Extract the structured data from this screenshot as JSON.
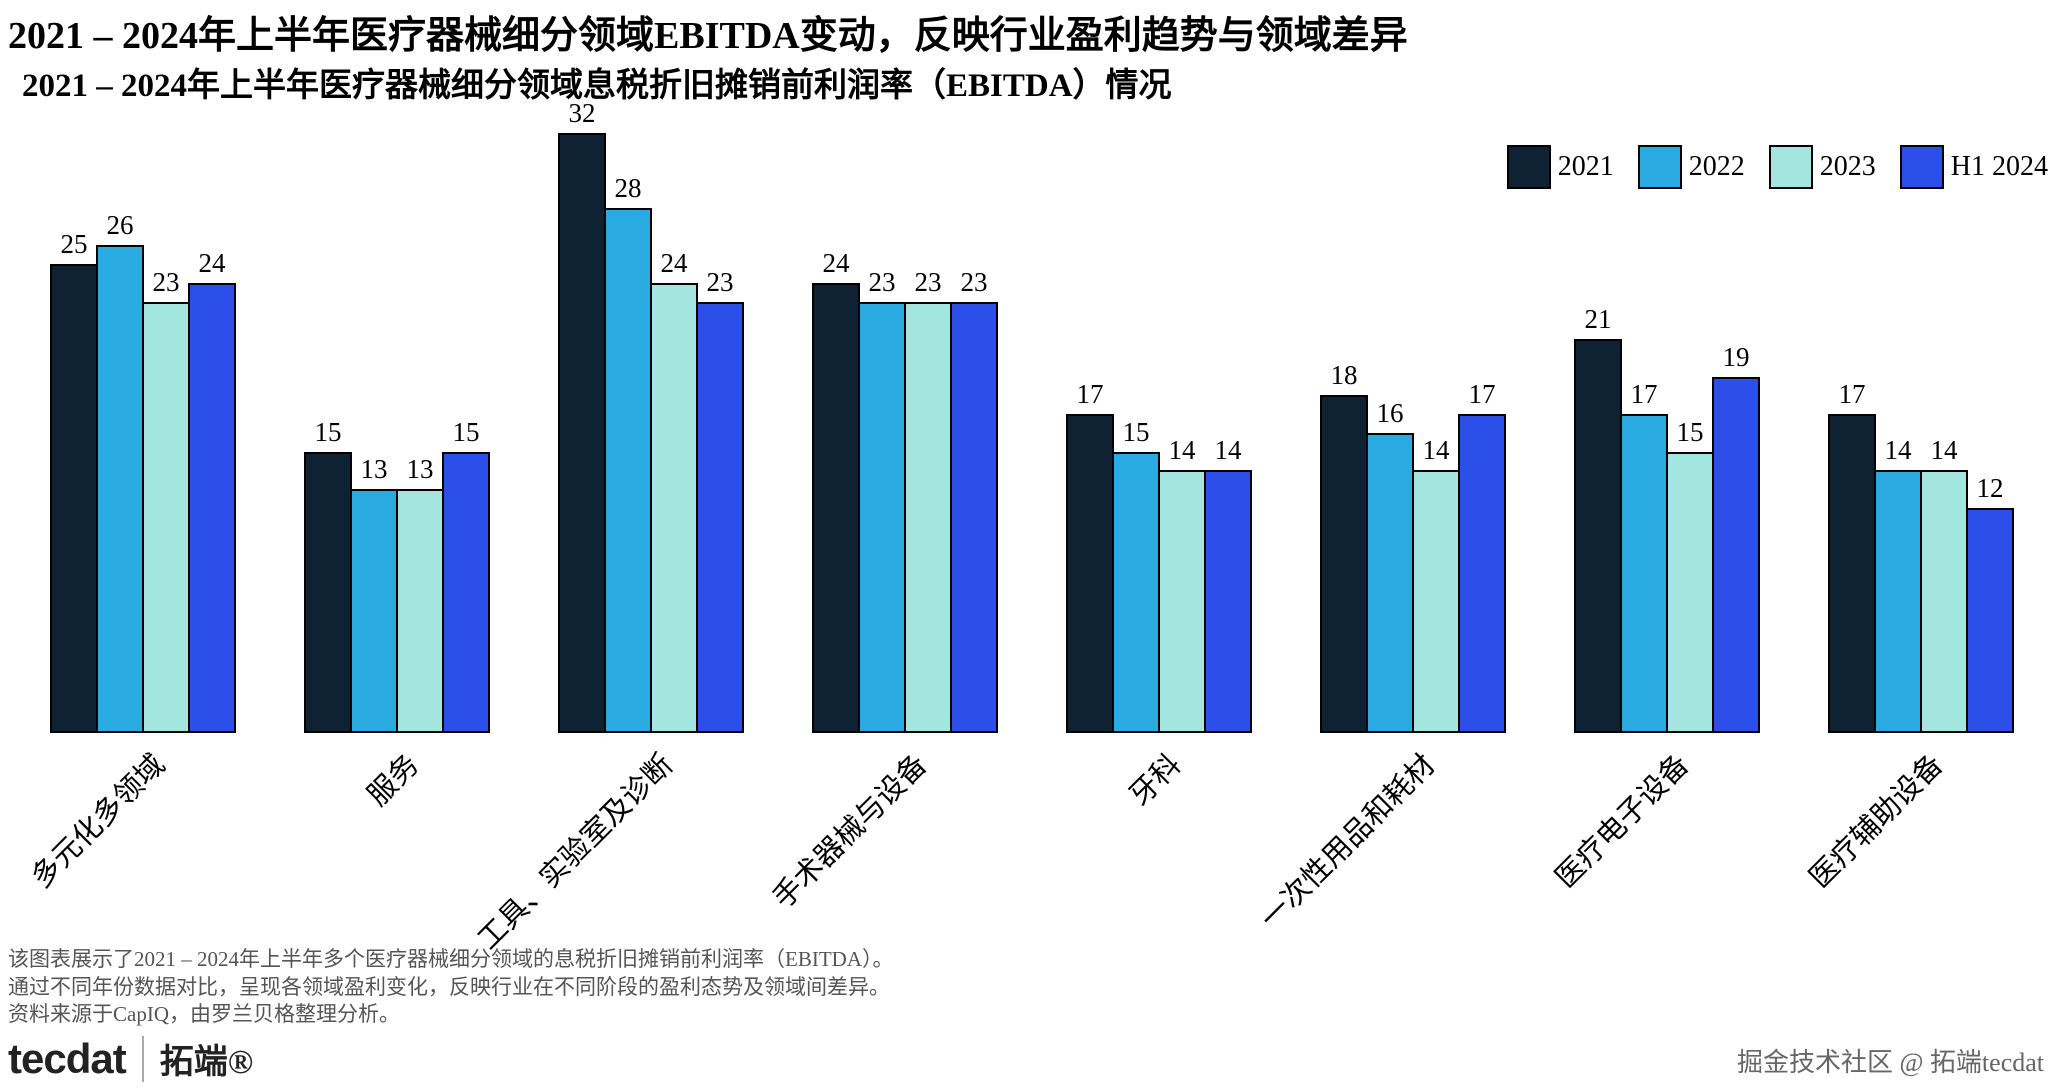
{
  "chart_data": {
    "type": "bar",
    "title": "2021 – 2024年上半年医疗器械细分领域EBITDA变动，反映行业盈利趋势与领域差异",
    "subtitle": "2021 – 2024年上半年医疗器械细分领域息税折旧摊销前利润率（EBITDA）情况",
    "categories": [
      "多元化多领域",
      "服务",
      "工具、实验室及诊断",
      "手术器械与设备",
      "牙科",
      "一次性用品和耗材",
      "医疗电子设备",
      "医疗辅助设备"
    ],
    "series": [
      {
        "name": "2021",
        "color": "#0e2233",
        "values": [
          25,
          15,
          32,
          24,
          17,
          18,
          21,
          17
        ]
      },
      {
        "name": "2022",
        "color": "#29abe2",
        "values": [
          26,
          13,
          28,
          23,
          15,
          16,
          17,
          14
        ]
      },
      {
        "name": "2023",
        "color": "#a3e6e0",
        "values": [
          23,
          13,
          24,
          23,
          14,
          14,
          15,
          14
        ]
      },
      {
        "name": "H1 2024",
        "color": "#2b4fe8",
        "values": [
          24,
          15,
          23,
          23,
          14,
          17,
          19,
          12
        ]
      }
    ],
    "ylim": [
      0,
      32
    ],
    "grid": false,
    "legend_position": "top-right",
    "bar_outline_color": "#000000",
    "value_labels_shown": true
  },
  "footer": {
    "lines": [
      "该图表展示了2021 – 2024年上半年多个医疗器械细分领域的息税折旧摊销前利润率（EBITDA）。",
      "通过不同年份数据对比，呈现各领域盈利变化，反映行业在不同阶段的盈利态势及领域间差异。",
      "资料来源于CapIQ，由罗兰贝格整理分析。"
    ]
  },
  "branding": {
    "logo_text": "tecdat",
    "logo_cn": "拓端®",
    "credit": "掘金技术社区 @ 拓端tecdat"
  }
}
